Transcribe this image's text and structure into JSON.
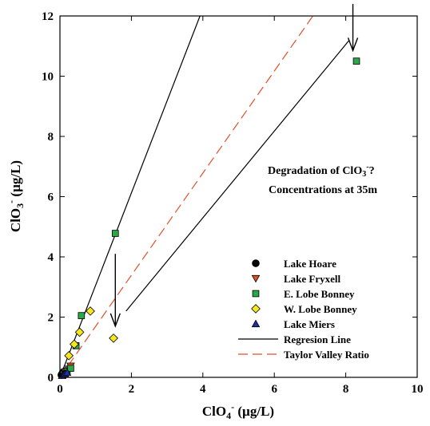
{
  "chart_data": {
    "type": "scatter",
    "xlabel_main": "ClO",
    "xlabel_sub": "4",
    "xlabel_sup": "-",
    "xlabel_unit": " (µg/L)",
    "ylabel_main": "ClO",
    "ylabel_sub": "3",
    "ylabel_sup": "-",
    "ylabel_unit": " (µg/L)",
    "xlim": [
      0,
      10
    ],
    "ylim": [
      0,
      12
    ],
    "xticks": [
      0,
      2,
      4,
      6,
      8,
      10
    ],
    "yticks": [
      0,
      2,
      4,
      6,
      8,
      10,
      12
    ],
    "grid": false,
    "legend_position": "lower-right",
    "series": [
      {
        "name": "Lake Hoare",
        "marker": "circle",
        "color": "#000000",
        "points": [
          [
            0.04,
            0.08
          ],
          [
            0.06,
            0.12
          ],
          [
            0.08,
            0.15
          ],
          [
            0.1,
            0.18
          ],
          [
            0.12,
            0.14
          ]
        ]
      },
      {
        "name": "Lake Fryxell",
        "marker": "triangle-down",
        "color": "#e0502a",
        "points": [
          [
            0.1,
            0.12
          ],
          [
            0.15,
            0.18
          ],
          [
            0.2,
            0.22
          ],
          [
            0.25,
            0.28
          ],
          [
            0.3,
            0.38
          ]
        ]
      },
      {
        "name": "E. Lobe Bonney",
        "marker": "square",
        "color": "#2aa84a",
        "points": [
          [
            0.1,
            0.1
          ],
          [
            0.2,
            0.2
          ],
          [
            0.3,
            0.3
          ],
          [
            0.45,
            1.05
          ],
          [
            0.6,
            2.05
          ],
          [
            1.55,
            4.78
          ],
          [
            8.3,
            10.5
          ]
        ]
      },
      {
        "name": "W. Lobe Bonney",
        "marker": "diamond",
        "color": "#f5e61e",
        "points": [
          [
            0.15,
            0.1
          ],
          [
            0.25,
            0.72
          ],
          [
            0.4,
            1.1
          ],
          [
            0.55,
            1.5
          ],
          [
            0.85,
            2.2
          ],
          [
            1.5,
            1.3
          ]
        ]
      },
      {
        "name": "Lake Miers",
        "marker": "triangle-up",
        "color": "#1f2fa0",
        "points": [
          [
            0.06,
            0.06
          ],
          [
            0.1,
            0.1
          ],
          [
            0.14,
            0.12
          ],
          [
            0.2,
            0.16
          ]
        ]
      }
    ],
    "lines": [
      {
        "name": "Regresion Line",
        "color": "#000000",
        "dash": "solid",
        "from": [
          0,
          0
        ],
        "to": [
          3.92,
          12
        ]
      },
      {
        "name": "Taylor Valley Ratio",
        "color": "#e0502a",
        "dash": "dashed",
        "from": [
          0,
          0
        ],
        "to": [
          7.08,
          12
        ]
      }
    ],
    "annotation": {
      "line1_main": "Degradation of ClO",
      "line1_sub": "3",
      "line1_sup": "-",
      "line1_end": "?",
      "line2": "Concentrations at 35m"
    },
    "arrows": [
      {
        "from": [
          8.2,
          12.4
        ],
        "to": [
          8.2,
          10.85
        ]
      },
      {
        "from": [
          1.55,
          4.1
        ],
        "to": [
          1.55,
          1.7
        ]
      }
    ],
    "annotation_pointer": {
      "from": [
        8.1,
        11.2
      ],
      "to": [
        1.85,
        2.2
      ]
    }
  }
}
